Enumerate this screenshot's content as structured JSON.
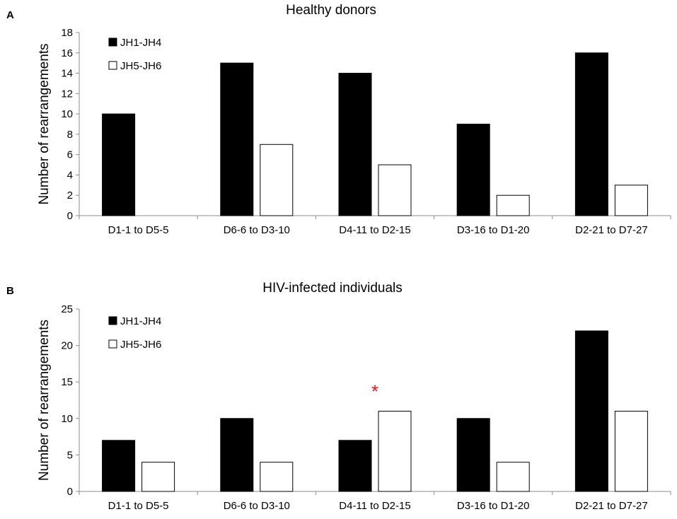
{
  "chart_data": [
    {
      "type": "bar",
      "panel_label": "A",
      "title": "Healthy donors",
      "xlabel": "",
      "ylabel": "Number of rearrangements",
      "ylim": [
        0,
        18
      ],
      "yticks": [
        0,
        2,
        4,
        6,
        8,
        10,
        12,
        14,
        16,
        18
      ],
      "grid": false,
      "legend_position": "top-left",
      "categories": [
        "D1-1 to D5-5",
        "D6-6 to D3-10",
        "D4-11 to D2-15",
        "D3-16 to D1-20",
        "D2-21 to D7-27"
      ],
      "series": [
        {
          "name": "JH1-JH4",
          "color": "#000000",
          "values": [
            10,
            15,
            14,
            9,
            16
          ]
        },
        {
          "name": "JH5-JH6",
          "color": "#ffffff",
          "values": [
            0,
            7,
            5,
            2,
            3
          ]
        }
      ],
      "annotations": []
    },
    {
      "type": "bar",
      "panel_label": "B",
      "title": "HIV-infected individuals",
      "xlabel": "",
      "ylabel": "Number of rearrangements",
      "ylim": [
        0,
        25
      ],
      "yticks": [
        0,
        5,
        10,
        15,
        20,
        25
      ],
      "grid": false,
      "legend_position": "top-left",
      "categories": [
        "D1-1 to D5-5",
        "D6-6 to D3-10",
        "D4-11 to D2-15",
        "D3-16 to D1-20",
        "D2-21 to D7-27"
      ],
      "series": [
        {
          "name": "JH1-JH4",
          "color": "#000000",
          "values": [
            7,
            10,
            7,
            10,
            22
          ]
        },
        {
          "name": "JH5-JH6",
          "color": "#ffffff",
          "values": [
            4,
            4,
            11,
            4,
            11
          ]
        }
      ],
      "annotations": [
        {
          "text": "*",
          "category_index": 2,
          "y": 14,
          "color": "#e8141b"
        }
      ]
    }
  ]
}
